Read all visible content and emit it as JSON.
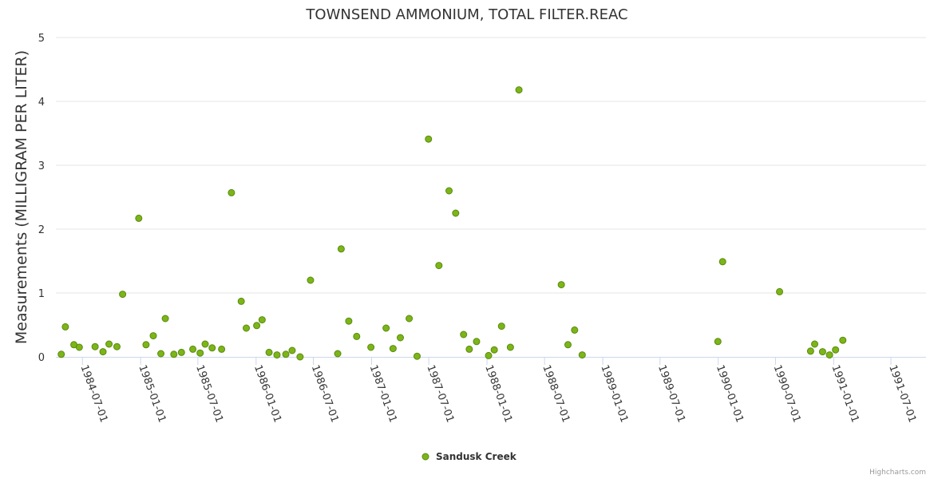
{
  "chart_data": {
    "type": "scatter",
    "title": "TOWNSEND AMMONIUM, TOTAL FILTER.REAC",
    "ylabel": "Measurements (MILLIGRAM PER LITER)",
    "xlabel": "",
    "ylim": [
      0,
      5
    ],
    "xlim": [
      "1984-04-08",
      "1991-10-20"
    ],
    "yticks": [
      0,
      1,
      2,
      3,
      4,
      5
    ],
    "xticks": [
      "1984-07-01",
      "1985-01-01",
      "1985-07-01",
      "1986-01-01",
      "1986-07-01",
      "1987-01-01",
      "1987-07-01",
      "1988-01-01",
      "1988-07-01",
      "1989-01-01",
      "1989-07-01",
      "1990-01-01",
      "1990-07-01",
      "1991-01-01",
      "1991-07-01"
    ],
    "grid": true,
    "legend": "bottom-center",
    "series": [
      {
        "name": "Sandusk Creek",
        "color": "#7cb518",
        "points": [
          [
            "1984-04-25",
            0.04
          ],
          [
            "1984-05-08",
            0.47
          ],
          [
            "1984-06-04",
            0.19
          ],
          [
            "1984-06-21",
            0.15
          ],
          [
            "1984-08-10",
            0.16
          ],
          [
            "1984-09-04",
            0.08
          ],
          [
            "1984-09-23",
            0.2
          ],
          [
            "1984-10-18",
            0.16
          ],
          [
            "1984-11-05",
            0.98
          ],
          [
            "1984-12-26",
            2.17
          ],
          [
            "1985-01-18",
            0.19
          ],
          [
            "1985-02-10",
            0.33
          ],
          [
            "1985-03-06",
            0.05
          ],
          [
            "1985-03-20",
            0.6
          ],
          [
            "1985-04-16",
            0.04
          ],
          [
            "1985-05-10",
            0.07
          ],
          [
            "1985-06-15",
            0.12
          ],
          [
            "1985-07-08",
            0.06
          ],
          [
            "1985-07-24",
            0.2
          ],
          [
            "1985-08-15",
            0.14
          ],
          [
            "1985-09-14",
            0.12
          ],
          [
            "1985-10-15",
            2.57
          ],
          [
            "1985-11-15",
            0.87
          ],
          [
            "1985-12-01",
            0.45
          ],
          [
            "1986-01-03",
            0.49
          ],
          [
            "1986-01-20",
            0.58
          ],
          [
            "1986-02-11",
            0.07
          ],
          [
            "1986-03-08",
            0.03
          ],
          [
            "1986-04-05",
            0.04
          ],
          [
            "1986-04-25",
            0.1
          ],
          [
            "1986-05-20",
            0.0
          ],
          [
            "1986-06-22",
            1.2
          ],
          [
            "1986-09-16",
            0.05
          ],
          [
            "1986-09-27",
            1.69
          ],
          [
            "1986-10-21",
            0.56
          ],
          [
            "1986-11-15",
            0.32
          ],
          [
            "1986-12-30",
            0.15
          ],
          [
            "1987-02-16",
            0.45
          ],
          [
            "1987-03-10",
            0.13
          ],
          [
            "1987-04-02",
            0.3
          ],
          [
            "1987-04-30",
            0.6
          ],
          [
            "1987-05-25",
            0.01
          ],
          [
            "1987-06-30",
            3.41
          ],
          [
            "1987-08-02",
            1.43
          ],
          [
            "1987-09-03",
            2.6
          ],
          [
            "1987-09-24",
            2.25
          ],
          [
            "1987-10-19",
            0.35
          ],
          [
            "1987-11-06",
            0.12
          ],
          [
            "1987-11-29",
            0.24
          ],
          [
            "1988-01-06",
            0.02
          ],
          [
            "1988-01-24",
            0.11
          ],
          [
            "1988-02-16",
            0.48
          ],
          [
            "1988-03-15",
            0.15
          ],
          [
            "1988-04-11",
            4.18
          ],
          [
            "1988-08-23",
            1.13
          ],
          [
            "1988-09-13",
            0.19
          ],
          [
            "1988-10-04",
            0.42
          ],
          [
            "1988-10-28",
            0.03
          ],
          [
            "1989-12-31",
            0.24
          ],
          [
            "1990-01-15",
            1.49
          ],
          [
            "1990-07-14",
            1.02
          ],
          [
            "1990-10-20",
            0.09
          ],
          [
            "1990-11-02",
            0.2
          ],
          [
            "1990-11-27",
            0.08
          ],
          [
            "1990-12-19",
            0.03
          ],
          [
            "1991-01-07",
            0.11
          ],
          [
            "1991-01-30",
            0.26
          ]
        ]
      }
    ]
  },
  "credits": "Highcharts.com"
}
